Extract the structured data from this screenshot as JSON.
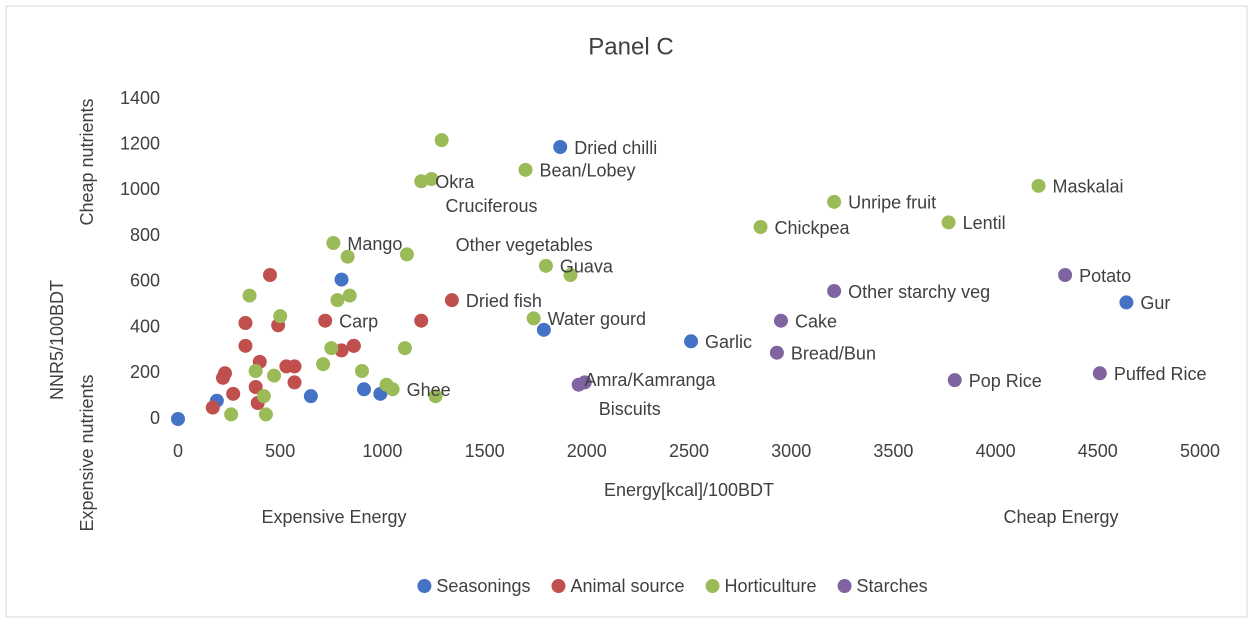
{
  "chart_data": {
    "type": "scatter",
    "title": "Panel C",
    "x_label": "Energy[kcal]/100BDT",
    "y_label": "NNR5/100BDT",
    "y_high_note": "Cheap nutrients",
    "y_low_note": "Expensive nutrients",
    "x_low_note": "Expensive Energy",
    "x_high_note": "Cheap Energy",
    "xlim": [
      0,
      5000
    ],
    "xticks": [
      0,
      500,
      1000,
      1500,
      2000,
      2500,
      3000,
      3500,
      4000,
      4500,
      5000
    ],
    "ylim": [
      0,
      1400
    ],
    "yticks": [
      0,
      200,
      400,
      600,
      800,
      1000,
      1200,
      1400
    ],
    "grid": false,
    "legend": "bottom",
    "series": [
      {
        "name": "Seasonings",
        "color": "#4472c4",
        "x": [
          0,
          190,
          1870,
          800,
          860,
          650,
          910,
          990,
          1790,
          2510,
          4640
        ],
        "values": [
          0,
          80,
          1190,
          610,
          320,
          100,
          130,
          110,
          390,
          340,
          510
        ],
        "labels": [
          null,
          null,
          "Dried chilli",
          null,
          null,
          null,
          null,
          null,
          null,
          "Garlic",
          "Gur"
        ]
      },
      {
        "name": "Animal source",
        "color": "#c0504d",
        "x": [
          170,
          220,
          230,
          270,
          330,
          330,
          390,
          380,
          400,
          450,
          490,
          530,
          570,
          570,
          720,
          800,
          860,
          1190,
          1340
        ],
        "values": [
          50,
          180,
          200,
          110,
          420,
          320,
          70,
          140,
          250,
          630,
          410,
          230,
          230,
          160,
          430,
          300,
          320,
          430,
          520
        ],
        "labels": [
          null,
          null,
          null,
          null,
          null,
          null,
          null,
          null,
          null,
          null,
          null,
          null,
          null,
          null,
          "Carp",
          null,
          null,
          null,
          "Dried fish"
        ]
      },
      {
        "name": "Horticulture",
        "color": "#9bbb59",
        "x": [
          260,
          430,
          420,
          350,
          380,
          470,
          500,
          710,
          750,
          760,
          780,
          830,
          840,
          900,
          1020,
          1050,
          1110,
          1120,
          1190,
          1240,
          1290,
          1260,
          1700,
          1740,
          1800,
          1920,
          2850,
          3210,
          3770,
          4210
        ],
        "values": [
          20,
          20,
          100,
          540,
          210,
          190,
          450,
          240,
          310,
          770,
          520,
          710,
          540,
          210,
          150,
          130,
          310,
          720,
          1040,
          1050,
          1220,
          100,
          1090,
          440,
          670,
          630,
          840,
          950,
          860,
          1020
        ],
        "labels": [
          null,
          null,
          null,
          null,
          null,
          null,
          null,
          null,
          null,
          "Mango",
          null,
          null,
          null,
          null,
          null,
          "Ghee",
          null,
          null,
          "Okra",
          "Cruciferous",
          "Other vegetables",
          null,
          "Bean/Lobey",
          "Water gourd",
          "Guava",
          "Amra/Kamranga",
          "Chickpea",
          "Unripe fruit",
          "Lentil",
          "Maskalai"
        ]
      },
      {
        "name": "Starches",
        "color": "#8064a2",
        "x": [
          1960,
          1990,
          2950,
          2930,
          3210,
          3800,
          4340,
          4510
        ],
        "values": [
          150,
          160,
          430,
          290,
          560,
          170,
          630,
          200
        ],
        "labels": [
          null,
          "Biscuits",
          "Cake",
          "Bread/Bun",
          "Other starchy veg",
          "Pop Rice",
          "Potato",
          "Puffed Rice"
        ]
      }
    ]
  }
}
